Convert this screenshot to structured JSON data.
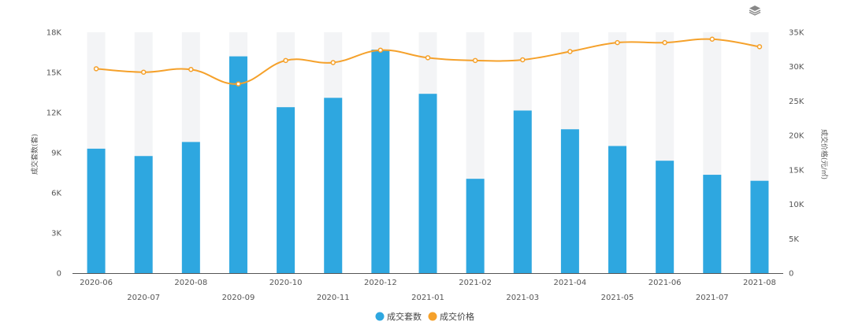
{
  "chart_data": {
    "type": "bar",
    "categories": [
      "2020-06",
      "2020-07",
      "2020-08",
      "2020-09",
      "2020-10",
      "2020-11",
      "2020-12",
      "2021-01",
      "2021-02",
      "2021-03",
      "2021-04",
      "2021-05",
      "2021-06",
      "2021-07",
      "2021-08"
    ],
    "series": [
      {
        "name": "成交套数",
        "type": "bar",
        "axis": "left",
        "color": "#2ea7e0",
        "values": [
          9300,
          8750,
          9800,
          16200,
          12400,
          13100,
          16700,
          13400,
          7050,
          12150,
          10750,
          9500,
          8400,
          7350,
          6900
        ]
      },
      {
        "name": "成交价格",
        "type": "line",
        "axis": "right",
        "color": "#f5a12b",
        "values": [
          29700,
          29200,
          29600,
          27500,
          30900,
          30600,
          32400,
          31300,
          30900,
          31000,
          32200,
          33500,
          33500,
          34000,
          32900
        ]
      }
    ],
    "ylabel_left": "成交套数(套)",
    "ylabel_right": "成交价格(元/㎡)",
    "ylim_left": [
      0,
      18000
    ],
    "ylim_right": [
      0,
      35000
    ],
    "yticks_left": [
      "0",
      "3K",
      "6K",
      "9K",
      "12K",
      "15K",
      "18K"
    ],
    "yticks_right": [
      "0",
      "5K",
      "10K",
      "15K",
      "20K",
      "25K",
      "30K",
      "35K"
    ],
    "legend_position": "bottom-center",
    "background_bars": true,
    "grid": false
  },
  "toolbar": {
    "layers_icon": "layers-icon"
  }
}
